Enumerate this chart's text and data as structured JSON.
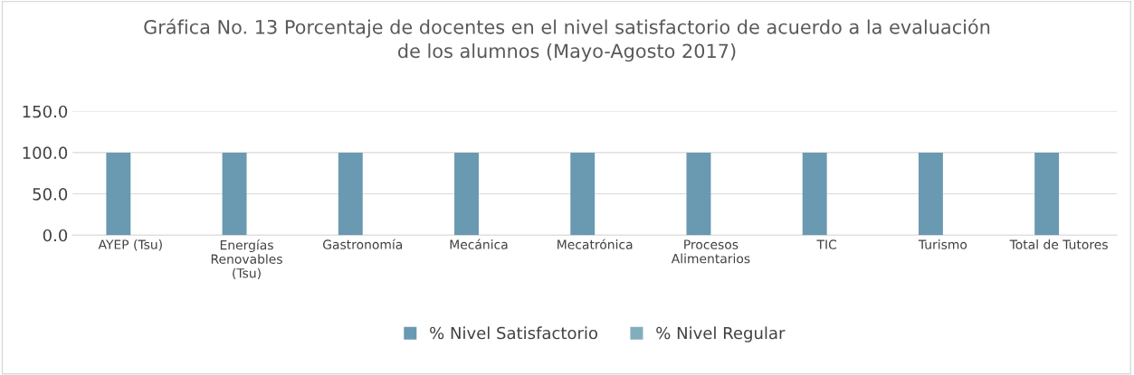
{
  "chart_data": {
    "type": "bar",
    "title": "Gráfica No. 13 Porcentaje de docentes en el nivel satisfactorio de acuerdo a la evaluación\nde los alumnos (Mayo-Agosto 2017)",
    "categories": [
      "AYEP (Tsu)",
      "Energías\nRenovables\n(Tsu)",
      "Gastronomía",
      "Mecánica",
      "Mecatrónica",
      "Procesos\nAlimentarios",
      "TIC",
      "Turismo",
      "Total de Tutores"
    ],
    "series": [
      {
        "name": "% Nivel Satisfactorio",
        "color": "#6a99b2",
        "values": [
          100,
          100,
          100,
          100,
          100,
          100,
          100,
          100,
          100
        ]
      },
      {
        "name": "% Nivel Regular",
        "color": "#80aebd",
        "values": [
          0,
          0,
          0,
          0,
          0,
          0,
          0,
          0,
          0
        ]
      }
    ],
    "ylim": [
      0,
      150
    ],
    "yticks": [
      {
        "value": 0,
        "label": "0.0"
      },
      {
        "value": 50,
        "label": "50.0"
      },
      {
        "value": 100,
        "label": "100.0"
      },
      {
        "value": 150,
        "label": "150.0"
      }
    ],
    "grid": "y",
    "legend": "bottom"
  }
}
